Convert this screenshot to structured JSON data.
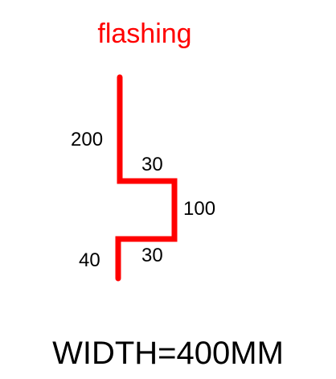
{
  "title": "flashing",
  "accent_color": "#ff0000",
  "dimensions": {
    "top_vertical": "200",
    "upper_horizontal": "30",
    "middle_vertical": "100",
    "lower_horizontal": "30",
    "bottom_vertical": "40"
  },
  "footer": "WIDTH=400MM"
}
